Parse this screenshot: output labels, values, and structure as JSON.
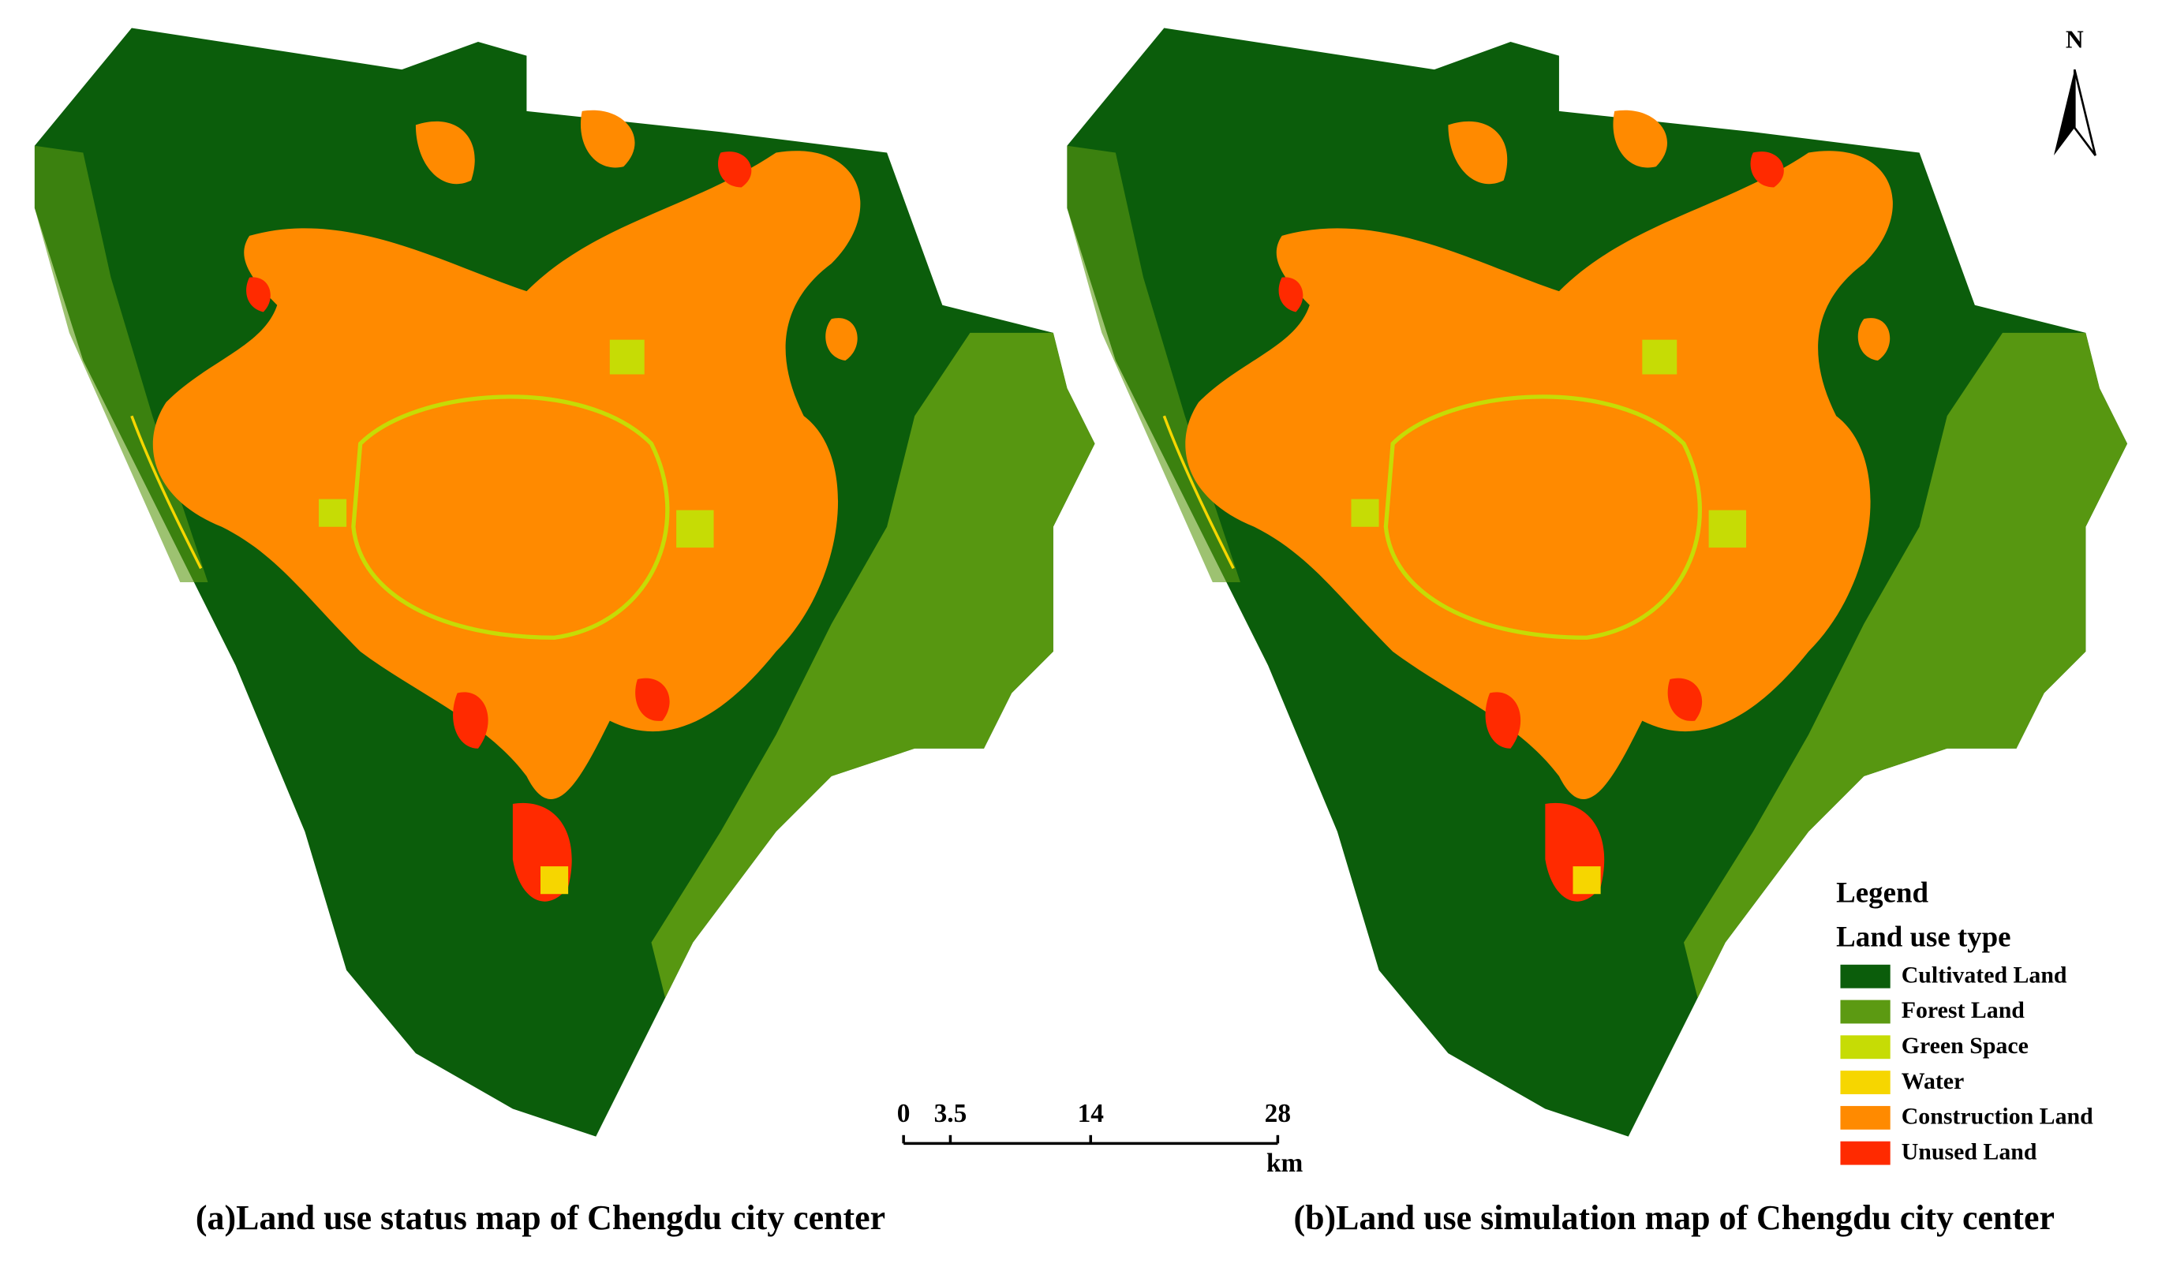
{
  "north": "N",
  "scale_bar": {
    "ticks": [
      0,
      3.5,
      14,
      28
    ],
    "unit": "km"
  },
  "legend": {
    "title": "Legend",
    "subtitle": "Land use type",
    "items": [
      {
        "label": "Cultivated Land",
        "color": "#0b5d0b"
      },
      {
        "label": "Forest Land",
        "color": "#5c9a12"
      },
      {
        "label": "Green Space",
        "color": "#c6dc05"
      },
      {
        "label": "Water",
        "color": "#f6d600"
      },
      {
        "label": "Construction Land",
        "color": "#ff8a00"
      },
      {
        "label": "Unused Land",
        "color": "#ff2a00"
      }
    ]
  },
  "panels": [
    {
      "caption": "(a)Land use status map of Chengdu city center"
    },
    {
      "caption": "(b)Land use simulation map of Chengdu city center"
    }
  ]
}
